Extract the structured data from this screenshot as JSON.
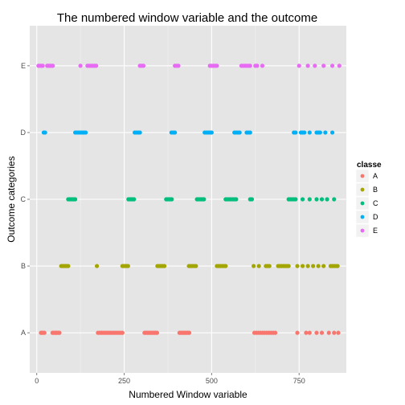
{
  "chart_data": {
    "type": "scatter",
    "title": "The numbered window variable and the outcome",
    "xlabel": "Numbered Window variable",
    "ylabel": "Outcome categories",
    "xlim": [
      -20,
      885
    ],
    "x_ticks": [
      0,
      250,
      500,
      750
    ],
    "categories": [
      "A",
      "B",
      "C",
      "D",
      "E"
    ],
    "grid": true,
    "legend": {
      "title": "classe",
      "position": "right"
    },
    "series": [
      {
        "name": "A",
        "color": "#F8766D",
        "x": [
          12,
          15,
          18,
          22,
          45,
          48,
          52,
          55,
          58,
          62,
          65,
          175,
          180,
          185,
          190,
          195,
          200,
          205,
          210,
          215,
          220,
          225,
          230,
          235,
          240,
          245,
          308,
          312,
          316,
          320,
          324,
          328,
          332,
          336,
          340,
          344,
          408,
          412,
          416,
          420,
          424,
          428,
          432,
          436,
          622,
          628,
          634,
          640,
          646,
          652,
          658,
          664,
          670,
          676,
          682,
          745,
          770,
          780,
          800,
          815,
          835,
          850,
          862
        ]
      },
      {
        "name": "B",
        "color": "#A3A500",
        "x": [
          70,
          74,
          78,
          82,
          86,
          90,
          172,
          245,
          249,
          253,
          257,
          261,
          345,
          350,
          355,
          360,
          365,
          435,
          440,
          445,
          450,
          455,
          515,
          520,
          525,
          530,
          535,
          540,
          620,
          635,
          655,
          660,
          665,
          690,
          695,
          700,
          705,
          710,
          715,
          720,
          745,
          760,
          775,
          790,
          805,
          820,
          840,
          845,
          850,
          855,
          860
        ]
      },
      {
        "name": "C",
        "color": "#00BF7D",
        "x": [
          90,
          94,
          98,
          102,
          106,
          110,
          262,
          266,
          270,
          274,
          278,
          370,
          374,
          378,
          382,
          386,
          458,
          462,
          466,
          470,
          474,
          478,
          540,
          545,
          550,
          555,
          560,
          565,
          570,
          610,
          615,
          720,
          725,
          730,
          735,
          740,
          760,
          780,
          800,
          815,
          830,
          850
        ]
      },
      {
        "name": "D",
        "color": "#00B0F6",
        "x": [
          20,
          24,
          110,
          115,
          120,
          125,
          130,
          135,
          140,
          280,
          285,
          290,
          295,
          385,
          390,
          395,
          480,
          485,
          490,
          495,
          500,
          565,
          570,
          575,
          580,
          600,
          605,
          610,
          735,
          740,
          755,
          760,
          765,
          780,
          800,
          805,
          810,
          825,
          845
        ]
      },
      {
        "name": "E",
        "color": "#E76BF3",
        "x": [
          5,
          9,
          13,
          17,
          30,
          34,
          38,
          42,
          46,
          125,
          145,
          150,
          155,
          160,
          165,
          170,
          295,
          300,
          305,
          395,
          400,
          405,
          495,
          500,
          505,
          510,
          515,
          585,
          590,
          595,
          600,
          605,
          610,
          625,
          630,
          645,
          750,
          775,
          795,
          820,
          845,
          865
        ]
      }
    ]
  }
}
